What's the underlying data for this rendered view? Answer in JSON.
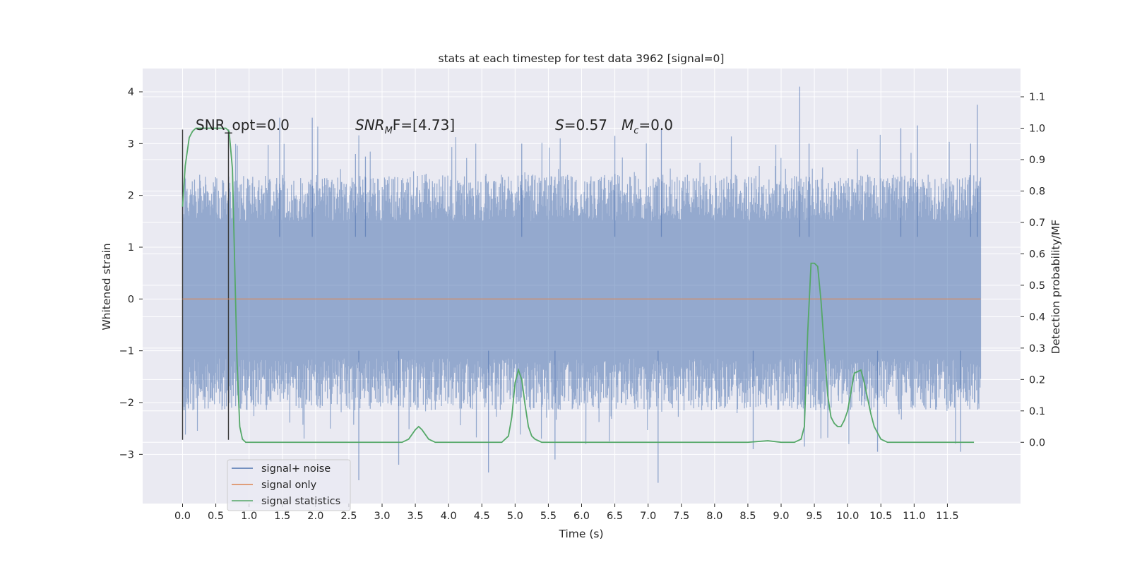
{
  "chart_data": {
    "type": "line",
    "title": "stats at each timestep for test data 3962 [signal=0]",
    "xlabel": "Time (s)",
    "ylabel": "Whitened strain",
    "ylabel_right": "Detection probability/MF",
    "xlim": [
      -0.6,
      12.6
    ],
    "ylim": [
      -3.95,
      4.45
    ],
    "ylim_right": [
      -0.195,
      1.19
    ],
    "xticks": [
      0.0,
      0.5,
      1.0,
      1.5,
      2.0,
      2.5,
      3.0,
      3.5,
      4.0,
      4.5,
      5.0,
      5.5,
      6.0,
      6.5,
      7.0,
      7.5,
      8.0,
      8.5,
      9.0,
      9.5,
      10.0,
      10.5,
      11.0,
      11.5
    ],
    "yticks": [
      -3,
      -2,
      -1,
      0,
      1,
      2,
      3,
      4
    ],
    "yticks_right": [
      0.0,
      0.1,
      0.2,
      0.3,
      0.4,
      0.5,
      0.6,
      0.7,
      0.8,
      0.9,
      1.0,
      1.1
    ],
    "grid": true,
    "legend_position": "bottom-left",
    "annotations": {
      "snr_opt": "SNR_opt=0.0",
      "snr_mf_prefix": "SNR",
      "snr_mf_sub": "M",
      "snr_mf_suffix": "F=[4.73]",
      "s_label": "S",
      "s_value": "=0.57",
      "mc_label": "M",
      "mc_sub": "c",
      "mc_value": "=0.0"
    },
    "markers": [
      {
        "x": 0.0,
        "y_low": -2.72,
        "y_high": 3.27
      },
      {
        "x": 0.69,
        "y_low": -2.72,
        "y_high": 3.27
      }
    ],
    "series": [
      {
        "name": "signal+ noise",
        "color": "#4c72b0",
        "axis": "left",
        "x_range": [
          0.0,
          12.0
        ],
        "band": {
          "typical_low": -1.3,
          "typical_high": 1.6,
          "peak_low": -3.5,
          "peak_high": 4.1
        },
        "spikes": [
          [
            1.46,
            3.5
          ],
          [
            1.95,
            3.5
          ],
          [
            2.6,
            2.8
          ],
          [
            2.75,
            2.75
          ],
          [
            2.65,
            -3.5
          ],
          [
            3.25,
            -3.2
          ],
          [
            4.6,
            -3.35
          ],
          [
            5.1,
            3.0
          ],
          [
            6.5,
            3.15
          ],
          [
            7.15,
            -3.55
          ],
          [
            7.2,
            3.3
          ],
          [
            9.28,
            4.1
          ],
          [
            9.42,
            3.0
          ],
          [
            9.35,
            -2.85
          ],
          [
            10.8,
            3.3
          ],
          [
            11.05,
            3.35
          ],
          [
            11.85,
            3.0
          ],
          [
            11.95,
            3.75
          ],
          [
            11.7,
            -2.95
          ],
          [
            10.45,
            -2.95
          ],
          [
            8.58,
            -2.9
          ],
          [
            5.6,
            -3.1
          ]
        ]
      },
      {
        "name": "signal only",
        "color": "#dd8452",
        "axis": "left",
        "x": [
          0.0,
          12.0
        ],
        "y": [
          0.0,
          0.0
        ]
      },
      {
        "name": "signal statistics",
        "color": "#55a868",
        "axis": "right",
        "x": [
          0.0,
          0.04,
          0.1,
          0.15,
          0.2,
          0.3,
          0.4,
          0.5,
          0.55,
          0.6,
          0.65,
          0.7,
          0.75,
          0.78,
          0.82,
          0.86,
          0.9,
          0.95,
          1.0,
          1.5,
          2.0,
          2.5,
          3.0,
          3.3,
          3.4,
          3.5,
          3.55,
          3.6,
          3.7,
          3.8,
          4.0,
          4.5,
          4.8,
          4.9,
          4.95,
          5.0,
          5.05,
          5.1,
          5.15,
          5.2,
          5.25,
          5.3,
          5.4,
          5.5,
          6.0,
          6.5,
          7.0,
          7.5,
          8.0,
          8.5,
          8.8,
          9.0,
          9.2,
          9.3,
          9.35,
          9.4,
          9.45,
          9.5,
          9.55,
          9.6,
          9.65,
          9.7,
          9.75,
          9.8,
          9.85,
          9.9,
          9.95,
          10.0,
          10.1,
          10.2,
          10.25,
          10.3,
          10.35,
          10.4,
          10.5,
          10.6,
          11.0,
          11.5,
          11.9
        ],
        "y": [
          0.75,
          0.88,
          0.97,
          0.99,
          1.0,
          1.0,
          1.0,
          1.0,
          1.0,
          1.0,
          1.0,
          0.99,
          0.87,
          0.6,
          0.25,
          0.05,
          0.01,
          0.0,
          0.0,
          0.0,
          0.0,
          0.0,
          0.0,
          0.0,
          0.01,
          0.04,
          0.05,
          0.04,
          0.01,
          0.0,
          0.0,
          0.0,
          0.0,
          0.02,
          0.08,
          0.19,
          0.23,
          0.2,
          0.12,
          0.05,
          0.02,
          0.01,
          0.0,
          0.0,
          0.0,
          0.0,
          0.0,
          0.0,
          0.0,
          0.0,
          0.005,
          0.0,
          0.0,
          0.01,
          0.05,
          0.35,
          0.57,
          0.57,
          0.56,
          0.45,
          0.3,
          0.15,
          0.08,
          0.06,
          0.05,
          0.05,
          0.07,
          0.1,
          0.22,
          0.23,
          0.19,
          0.14,
          0.09,
          0.05,
          0.01,
          0.0,
          0.0,
          0.0,
          0.0
        ]
      }
    ]
  }
}
